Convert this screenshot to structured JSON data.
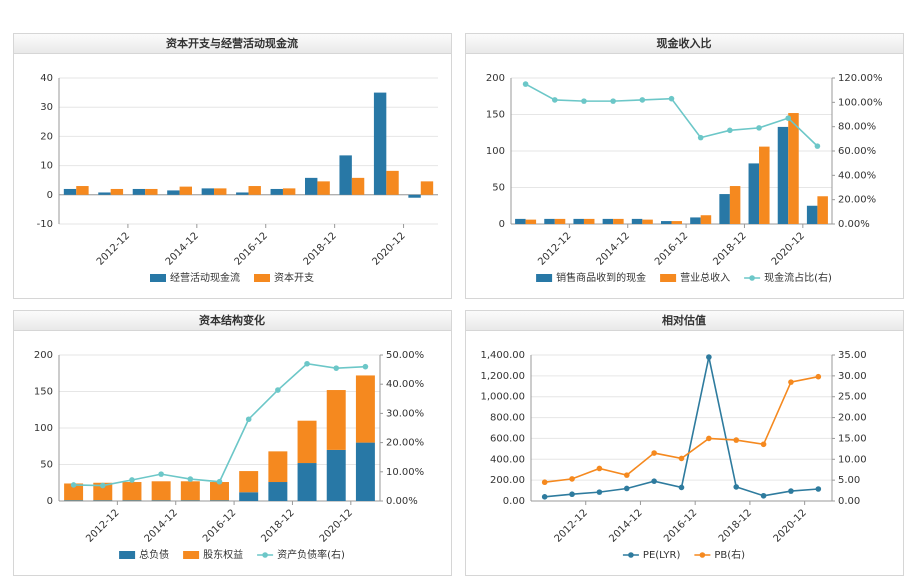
{
  "chart_data": [
    {
      "type": "bar",
      "title": "资本开支与经营活动现金流",
      "categories": [
        null,
        "2012-12",
        null,
        "2014-12",
        null,
        "2016-12",
        null,
        "2018-12",
        null,
        "2020-12",
        null
      ],
      "series": [
        {
          "name": "经营活动现金流",
          "color": "#2878a6",
          "type": "bar",
          "values": [
            2.0,
            0.8,
            2.0,
            1.5,
            2.2,
            0.8,
            2.0,
            5.8,
            13.5,
            35,
            -1.0
          ]
        },
        {
          "name": "资本开支",
          "color": "#f5891f",
          "type": "bar",
          "values": [
            3.0,
            2.0,
            2.0,
            2.8,
            2.2,
            3.0,
            2.2,
            4.6,
            5.8,
            8.2,
            4.6
          ]
        }
      ],
      "ylim": [
        -10,
        40
      ],
      "yticks": [
        -10,
        0,
        10,
        20,
        30,
        40
      ],
      "grid": true
    },
    {
      "type": "bar_line",
      "title": "现金收入比",
      "categories": [
        null,
        "2012-12",
        null,
        "2014-12",
        null,
        "2016-12",
        null,
        "2018-12",
        null,
        "2020-12",
        null
      ],
      "series": [
        {
          "name": "销售商品收到的现金",
          "color": "#2878a6",
          "type": "bar",
          "values": [
            7,
            7,
            7,
            7,
            7,
            4,
            9,
            41,
            83,
            133,
            25
          ]
        },
        {
          "name": "营业总收入",
          "color": "#f5891f",
          "type": "bar",
          "values": [
            6,
            7,
            7,
            7,
            6,
            4,
            12,
            52,
            106,
            152,
            38
          ]
        },
        {
          "name": "现金流占比(右)",
          "color": "#6cc7c8",
          "type": "line",
          "axis": "y2",
          "values": [
            115,
            102,
            101,
            101,
            102,
            103,
            71,
            77,
            79,
            87,
            64
          ]
        }
      ],
      "ylim": [
        0,
        200
      ],
      "yticks": [
        0,
        50,
        100,
        150,
        200
      ],
      "y2lim": [
        0,
        120
      ],
      "y2ticks": [
        {
          "value": 0,
          "label": "0.00%"
        },
        {
          "value": 20,
          "label": "20.00%"
        },
        {
          "value": 40,
          "label": "40.00%"
        },
        {
          "value": 60,
          "label": "60.00%"
        },
        {
          "value": 80,
          "label": "80.00%"
        },
        {
          "value": 100,
          "label": "100.00%"
        },
        {
          "value": 120,
          "label": "120.00%"
        }
      ],
      "grid": true
    },
    {
      "type": "stacked_bar_line",
      "title": "资本结构变化",
      "categories": [
        null,
        "2012-12",
        null,
        "2014-12",
        null,
        "2016-12",
        null,
        "2018-12",
        null,
        "2020-12",
        null
      ],
      "series": [
        {
          "name": "总负债",
          "color": "#2878a6",
          "type": "bar",
          "values": [
            1,
            1,
            1,
            1,
            1,
            1,
            12,
            26,
            52,
            70,
            80
          ]
        },
        {
          "name": "股东权益",
          "color": "#f5891f",
          "type": "bar",
          "values": [
            23,
            24,
            25,
            26,
            26,
            25,
            29,
            42,
            58,
            82,
            92
          ]
        },
        {
          "name": "资产负债率(右)",
          "color": "#6cc7c8",
          "type": "line",
          "axis": "y2",
          "values": [
            5.5,
            5.3,
            7.2,
            9.2,
            7.5,
            6.6,
            28,
            38,
            47,
            45.5,
            46
          ]
        }
      ],
      "ylim": [
        0,
        200
      ],
      "yticks": [
        0,
        50,
        100,
        150,
        200
      ],
      "y2lim": [
        0,
        50
      ],
      "y2ticks": [
        {
          "value": 0,
          "label": "0.00%"
        },
        {
          "value": 10,
          "label": "10.00%"
        },
        {
          "value": 20,
          "label": "20.00%"
        },
        {
          "value": 30,
          "label": "30.00%"
        },
        {
          "value": 40,
          "label": "40.00%"
        },
        {
          "value": 50,
          "label": "50.00%"
        }
      ],
      "grid": true
    },
    {
      "type": "line",
      "title": "相对估值",
      "categories": [
        null,
        "2012-12",
        null,
        "2014-12",
        null,
        "2016-12",
        null,
        "2018-12",
        null,
        "2020-12",
        null
      ],
      "series": [
        {
          "name": "PE(LYR)",
          "color": "#2e7b9e",
          "type": "line",
          "values": [
            40,
            65,
            85,
            120,
            190,
            130,
            1380,
            135,
            50,
            95,
            115
          ]
        },
        {
          "name": "PB(右)",
          "color": "#f5891f",
          "type": "line",
          "axis": "y2",
          "values": [
            4.5,
            5.3,
            7.8,
            6.2,
            11.5,
            10.2,
            15,
            14.6,
            13.6,
            28.5,
            29.8
          ]
        }
      ],
      "ylim": [
        0,
        1400
      ],
      "yticks": [
        {
          "value": 0,
          "label": "0.00"
        },
        {
          "value": 200,
          "label": "200.00"
        },
        {
          "value": 400,
          "label": "400.00"
        },
        {
          "value": 600,
          "label": "600.00"
        },
        {
          "value": 800,
          "label": "800.00"
        },
        {
          "value": 1000,
          "label": "1,000.00"
        },
        {
          "value": 1200,
          "label": "1,200.00"
        },
        {
          "value": 1400,
          "label": "1,400.00"
        }
      ],
      "y2lim": [
        0,
        35
      ],
      "y2ticks": [
        {
          "value": 0,
          "label": "0.00"
        },
        {
          "value": 5,
          "label": "5.00"
        },
        {
          "value": 10,
          "label": "10.00"
        },
        {
          "value": 15,
          "label": "15.00"
        },
        {
          "value": 20,
          "label": "20.00"
        },
        {
          "value": 25,
          "label": "25.00"
        },
        {
          "value": 30,
          "label": "30.00"
        },
        {
          "value": 35,
          "label": "35.00"
        }
      ],
      "grid": true
    }
  ]
}
